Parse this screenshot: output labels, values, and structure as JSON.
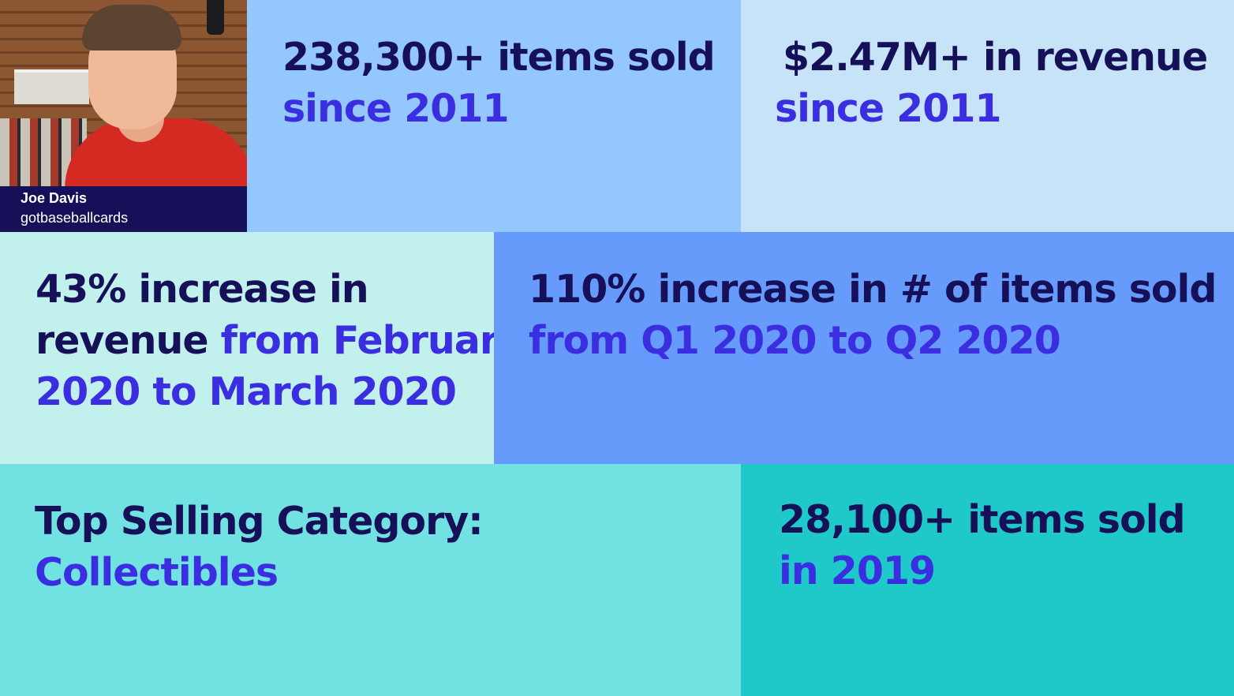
{
  "profile": {
    "name": "Joe Davis",
    "handle": "gotbaseballcards"
  },
  "stats": {
    "items_sold": {
      "headline": "238,300+ items sold",
      "detail": "since 2011"
    },
    "revenue": {
      "headline": "$2.47M+ in revenue",
      "detail": "since 2011"
    },
    "revenue_increase": {
      "headline_line1": "43% increase in",
      "headline_line2": "revenue",
      "detail_line2": "from February",
      "detail_line3": "2020 to March 2020"
    },
    "items_increase": {
      "headline": "110% increase in # of items sold",
      "detail": "from Q1 2020 to Q2 2020"
    },
    "top_category": {
      "headline": "Top Selling Category:",
      "detail": "Collectibles"
    },
    "items_2019": {
      "headline": "28,100+ items sold",
      "detail": "in 2019"
    }
  },
  "colors": {
    "heading_text": "#151057",
    "accent_text": "#3a2ee0",
    "caption_bg": "#151057",
    "tile_items": "#94c7fd",
    "tile_revenue": "#c6e3f8",
    "tile_revenue_increase": "#c2f0ec",
    "tile_items_increase": "#669bfc",
    "tile_category": "#71e1e1",
    "tile_items_2019": "#1fc9c9"
  }
}
